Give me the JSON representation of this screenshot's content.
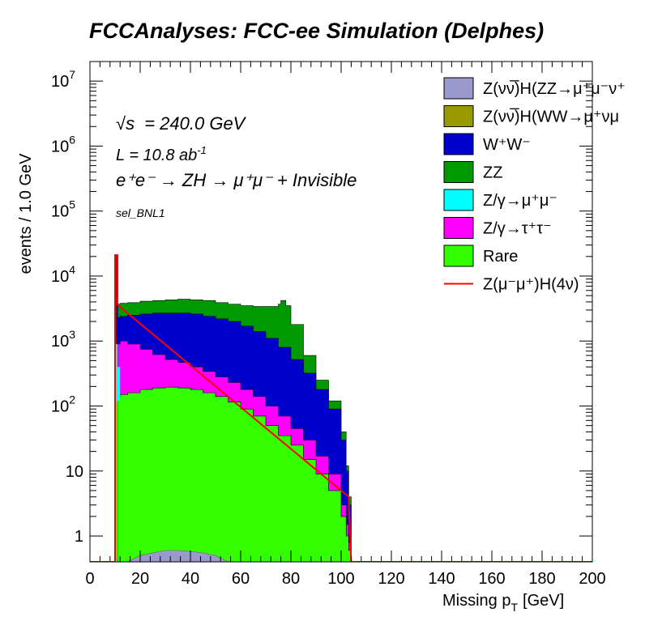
{
  "chart_data": {
    "type": "area",
    "title": "FCCAnalyses: FCC-ee Simulation (Delphes)",
    "xlabel": "Missing p",
    "xlabel_sub": "T",
    "xlabel_unit": "[GeV]",
    "ylabel": "events / 1.0 GeV",
    "xlim": [
      0,
      200
    ],
    "ylim": [
      0.4,
      20000000
    ],
    "yscale": "log",
    "grid": false,
    "stacked": true,
    "x_ticks": [
      "0",
      "20",
      "40",
      "60",
      "80",
      "100",
      "120",
      "140",
      "160",
      "180",
      "200"
    ],
    "y_ticks": [
      {
        "value": 1,
        "base": "1",
        "exp": ""
      },
      {
        "value": 10,
        "base": "10",
        "exp": ""
      },
      {
        "value": 100,
        "base": "10",
        "exp": "2"
      },
      {
        "value": 1000,
        "base": "10",
        "exp": "3"
      },
      {
        "value": 10000,
        "base": "10",
        "exp": "4"
      },
      {
        "value": 100000,
        "base": "10",
        "exp": "5"
      },
      {
        "value": 1000000,
        "base": "10",
        "exp": "6"
      },
      {
        "value": 10000000,
        "base": "10",
        "exp": "7"
      }
    ],
    "annotations": {
      "sqrt_s": "= 240.0 GeV",
      "lumi": "L = 10.8 ab",
      "lumi_exp": "-1",
      "process": "e⁺e⁻ → ZH → μ⁺μ⁻ + Invisible",
      "selection": "sel_BNL1"
    },
    "legend_position": "top-right",
    "legend": [
      {
        "label": "Z(νν̅)H(ZZ→μ⁺μ⁻ν⁺",
        "color": "#9999cc",
        "kind": "fill"
      },
      {
        "label": "Z(νν̅)H(WW→μ⁺νμ",
        "color": "#999900",
        "kind": "fill"
      },
      {
        "label": "W⁺W⁻",
        "color": "#0000cc",
        "kind": "fill"
      },
      {
        "label": "ZZ",
        "color": "#009900",
        "kind": "fill"
      },
      {
        "label": "Z/γ→μ⁺μ⁻",
        "color": "#00ffff",
        "kind": "fill"
      },
      {
        "label": "Z/γ→τ⁺τ⁻",
        "color": "#ff00ff",
        "kind": "fill"
      },
      {
        "label": "Rare",
        "color": "#33ff00",
        "kind": "fill"
      },
      {
        "label": "Z(μ⁻μ⁺)H(4ν)",
        "color": "#ff0000",
        "kind": "line"
      }
    ],
    "series_cumulative": [
      {
        "name": "Rare",
        "color": "#33ff00",
        "x": [
          10,
          11,
          12,
          15,
          20,
          25,
          30,
          35,
          40,
          45,
          50,
          55,
          60,
          65,
          70,
          75,
          80,
          85,
          90,
          95,
          100,
          102,
          103,
          104
        ],
        "y": [
          120,
          140,
          150,
          160,
          180,
          190,
          195,
          190,
          180,
          160,
          140,
          115,
          90,
          70,
          50,
          35,
          25,
          15,
          9,
          5,
          2,
          1,
          0.6,
          0.4
        ]
      },
      {
        "name": "Z/γ→τ⁺τ⁻",
        "color": "#ff00ff",
        "x": [
          10,
          11,
          12,
          15,
          20,
          25,
          30,
          35,
          40,
          45,
          50,
          55,
          60,
          65,
          70,
          75,
          80,
          85,
          90,
          95,
          100,
          102,
          103,
          104
        ],
        "y": [
          500,
          900,
          1000,
          900,
          750,
          620,
          520,
          470,
          400,
          340,
          280,
          230,
          180,
          140,
          100,
          70,
          45,
          30,
          17,
          9,
          3,
          1.5,
          0.8,
          0.4
        ]
      },
      {
        "name": "W⁺W⁻",
        "color": "#0000cc",
        "x": [
          10,
          11,
          12,
          15,
          20,
          25,
          30,
          35,
          40,
          45,
          50,
          55,
          60,
          65,
          70,
          75,
          80,
          85,
          90,
          95,
          100,
          102,
          103,
          104
        ],
        "y": [
          2000,
          2300,
          2400,
          2500,
          2600,
          2700,
          2700,
          2700,
          2600,
          2400,
          2200,
          2000,
          1700,
          1400,
          1100,
          800,
          520,
          320,
          180,
          90,
          30,
          10,
          3,
          0.4
        ]
      },
      {
        "name": "ZZ",
        "color": "#009900",
        "x": [
          10,
          11,
          12,
          15,
          20,
          25,
          30,
          35,
          40,
          45,
          50,
          55,
          60,
          65,
          70,
          75,
          76,
          78,
          80,
          85,
          90,
          95,
          100,
          102,
          103,
          104
        ],
        "y": [
          3600,
          3700,
          3800,
          3900,
          4100,
          4200,
          4300,
          4400,
          4300,
          4200,
          3900,
          3700,
          3500,
          3400,
          3400,
          3700,
          4200,
          3500,
          1800,
          600,
          250,
          120,
          40,
          12,
          4,
          0.4
        ]
      }
    ],
    "spike": {
      "x": 10,
      "value": 21000
    },
    "signal_line": {
      "x": [
        0,
        10,
        10,
        11,
        11,
        103,
        104,
        200
      ],
      "y": [
        0.4,
        0.4,
        21000,
        21000,
        3600,
        4,
        0.4,
        0.4
      ]
    },
    "small_bump": {
      "x": [
        15,
        20,
        25,
        30,
        35,
        40,
        45,
        50,
        55
      ],
      "y": [
        0.4,
        0.5,
        0.55,
        0.6,
        0.6,
        0.58,
        0.55,
        0.5,
        0.4
      ],
      "color": "#9999cc"
    }
  }
}
